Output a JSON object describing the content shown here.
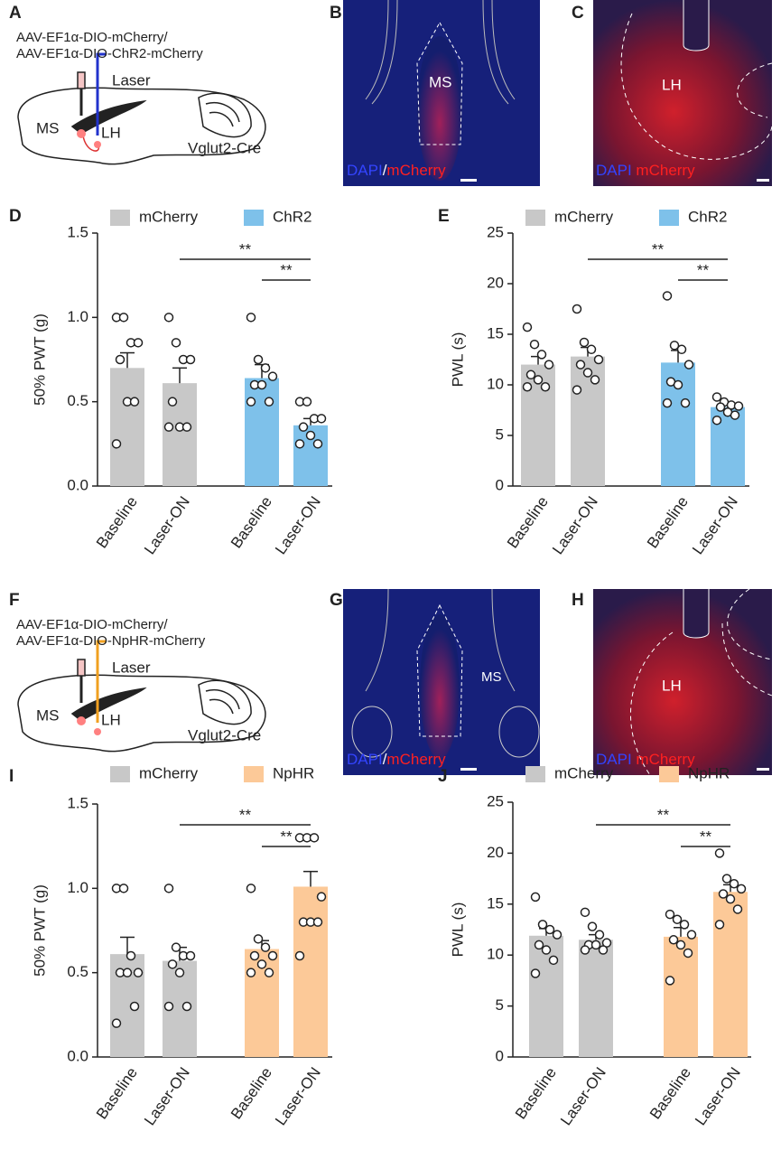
{
  "panels": {
    "A": {
      "label": "A",
      "construct": [
        "AAV-EF1α-DIO-mCherry/",
        "AAV-EF1α-DIO-ChR2-mCherry"
      ],
      "laser": "Laser",
      "regions": [
        "MS",
        "LH"
      ],
      "mouse": "Vglut2-Cre"
    },
    "B": {
      "label": "B",
      "region": "MS",
      "stain": [
        "DAPI",
        "/",
        "mCherry"
      ]
    },
    "C": {
      "label": "C",
      "region": "LH",
      "stain": [
        "DAPI",
        "mCherry"
      ]
    },
    "F": {
      "label": "F",
      "construct": [
        "AAV-EF1α-DIO-mCherry/",
        "AAV-EF1α-DIO-NpHR-mCherry"
      ],
      "laser": "Laser",
      "regions": [
        "MS",
        "LH"
      ],
      "mouse": "Vglut2-Cre"
    },
    "G": {
      "label": "G",
      "region": "MS",
      "stain": [
        "DAPI",
        "/",
        "mCherry"
      ]
    },
    "H": {
      "label": "H",
      "region": "LH",
      "stain": [
        "DAPI",
        "mCherry"
      ]
    }
  },
  "chart_data": [
    {
      "type": "bar",
      "label": "D",
      "ylabel": "50% PWT (g)",
      "categories": [
        "Baseline",
        "Laser-ON",
        "Baseline",
        "Laser-ON"
      ],
      "ylim": [
        0,
        1.5
      ],
      "yticks": [
        {
          "value": 0,
          "label": "0.0"
        },
        {
          "value": 0.5,
          "label": "0.5"
        },
        {
          "value": 1,
          "label": "1.0"
        },
        {
          "value": 1.5,
          "label": "1.5"
        }
      ],
      "series": [
        {
          "name": "mCherry",
          "color": "#c8c8c8",
          "values": [
            0.7,
            0.61,
            null,
            null
          ],
          "errors": [
            0.09,
            0.09,
            null,
            null
          ],
          "points": [
            [
              1.0,
              1.0,
              0.85,
              0.85,
              0.75,
              0.5,
              0.5,
              0.25
            ],
            [
              1.0,
              0.85,
              0.75,
              0.75,
              0.5,
              0.35,
              0.35,
              0.35
            ],
            null,
            null
          ]
        },
        {
          "name": "ChR2",
          "color": "#7ec1ea",
          "values": [
            null,
            null,
            0.64,
            0.36
          ],
          "errors": [
            null,
            null,
            0.08,
            0.04
          ],
          "points": [
            null,
            null,
            [
              1.0,
              0.75,
              0.7,
              0.65,
              0.6,
              0.6,
              0.5,
              0.5
            ],
            [
              0.5,
              0.5,
              0.4,
              0.4,
              0.35,
              0.3,
              0.25,
              0.25
            ]
          ]
        }
      ],
      "annotations": [
        {
          "text": "**",
          "from": 1,
          "to": 3
        },
        {
          "text": "**",
          "from": 2,
          "to": 3
        }
      ]
    },
    {
      "type": "bar",
      "label": "E",
      "ylabel": "PWL (s)",
      "categories": [
        "Baseline",
        "Laser-ON",
        "Baseline",
        "Laser-ON"
      ],
      "ylim": [
        0,
        25
      ],
      "yticks": [
        0,
        5,
        10,
        15,
        20,
        25
      ],
      "series": [
        {
          "name": "mCherry",
          "color": "#c8c8c8",
          "values": [
            12.0,
            12.8,
            null,
            null
          ],
          "errors": [
            0.8,
            0.9,
            null,
            null
          ],
          "points": [
            [
              15.7,
              14,
              13,
              12,
              11,
              10.5,
              9.8,
              9.8
            ],
            [
              17.5,
              14.2,
              13.5,
              12.5,
              12,
              11.2,
              10.5,
              9.5
            ],
            null,
            null
          ]
        },
        {
          "name": "ChR2",
          "color": "#7ec1ea",
          "values": [
            null,
            null,
            12.2,
            7.8
          ],
          "errors": [
            null,
            null,
            1.2,
            0.4
          ],
          "points": [
            null,
            null,
            [
              18.8,
              13.9,
              13.5,
              12,
              10.3,
              10,
              8.2,
              8.2
            ],
            [
              8.8,
              8.3,
              8,
              7.9,
              7.8,
              7.3,
              7,
              6.5
            ]
          ]
        }
      ],
      "annotations": [
        {
          "text": "**",
          "from": 1,
          "to": 3
        },
        {
          "text": "**",
          "from": 2,
          "to": 3
        }
      ]
    },
    {
      "type": "bar",
      "label": "I",
      "ylabel": "50% PWT (g)",
      "categories": [
        "Baseline",
        "Laser-ON",
        "Baseline",
        "Laser-ON"
      ],
      "ylim": [
        0,
        1.5
      ],
      "yticks": [
        {
          "value": 0,
          "label": "0.0"
        },
        {
          "value": 0.5,
          "label": "0.5"
        },
        {
          "value": 1,
          "label": "1.0"
        },
        {
          "value": 1.5,
          "label": "1.5"
        }
      ],
      "series": [
        {
          "name": "mCherry",
          "color": "#c8c8c8",
          "values": [
            0.61,
            0.57,
            null,
            null
          ],
          "errors": [
            0.1,
            0.08,
            null,
            null
          ],
          "points": [
            [
              1.0,
              1.0,
              0.6,
              0.5,
              0.5,
              0.5,
              0.3,
              0.2
            ],
            [
              1.0,
              0.65,
              0.6,
              0.6,
              0.55,
              0.5,
              0.3,
              0.3
            ],
            null,
            null
          ]
        },
        {
          "name": "NpHR",
          "color": "#fcc998",
          "values": [
            null,
            null,
            0.64,
            1.01
          ],
          "errors": [
            null,
            null,
            0.05,
            0.09
          ],
          "points": [
            null,
            null,
            [
              1.0,
              0.7,
              0.65,
              0.6,
              0.6,
              0.55,
              0.5,
              0.5
            ],
            [
              1.3,
              1.3,
              1.3,
              0.95,
              0.8,
              0.8,
              0.8,
              0.6
            ]
          ]
        }
      ],
      "annotations": [
        {
          "text": "**",
          "from": 1,
          "to": 3
        },
        {
          "text": "**",
          "from": 2,
          "to": 3
        }
      ]
    },
    {
      "type": "bar",
      "label": "J",
      "ylabel": "PWL (s)",
      "categories": [
        "Baseline",
        "Laser-ON",
        "Baseline",
        "Laser-ON"
      ],
      "ylim": [
        0,
        25
      ],
      "yticks": [
        0,
        5,
        10,
        15,
        20,
        25
      ],
      "series": [
        {
          "name": "mCherry",
          "color": "#c8c8c8",
          "values": [
            11.9,
            11.5,
            null,
            null
          ],
          "errors": [
            0.7,
            0.5,
            null,
            null
          ],
          "points": [
            [
              15.7,
              13,
              12.5,
              12,
              11,
              10.5,
              9.5,
              8.2
            ],
            [
              14.2,
              12.8,
              12,
              11.2,
              11,
              11,
              10.5,
              10.5
            ],
            null,
            null
          ]
        },
        {
          "name": "NpHR",
          "color": "#fcc998",
          "values": [
            null,
            null,
            11.8,
            16.2
          ],
          "errors": [
            null,
            null,
            0.9,
            0.7
          ],
          "points": [
            null,
            null,
            [
              14,
              13.5,
              13,
              12,
              11.5,
              11,
              10.2,
              7.5
            ],
            [
              20,
              17.5,
              17,
              16.5,
              16,
              15.5,
              14.5,
              13
            ]
          ]
        }
      ],
      "annotations": [
        {
          "text": "**",
          "from": 1,
          "to": 3
        },
        {
          "text": "**",
          "from": 2,
          "to": 3
        }
      ]
    }
  ]
}
